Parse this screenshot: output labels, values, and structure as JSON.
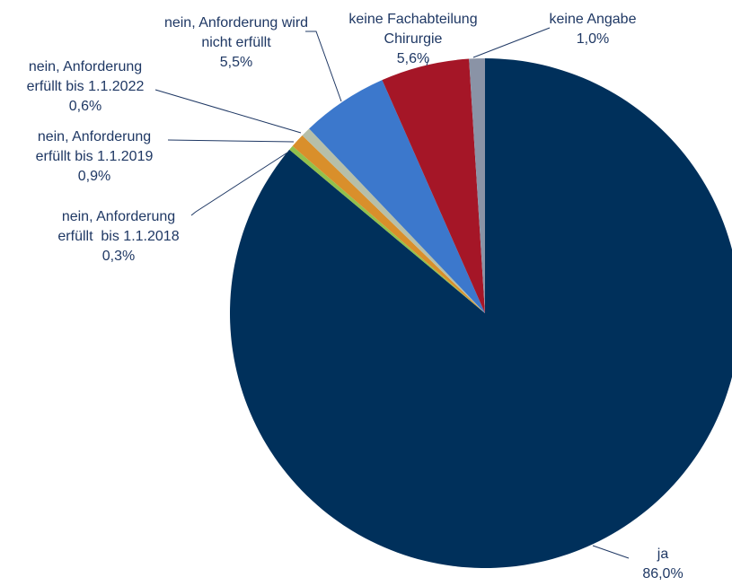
{
  "chart_data": {
    "type": "pie",
    "title": "",
    "start_angle_deg": 0,
    "direction": "clockwise",
    "slices": [
      {
        "label_lines": [
          "ja"
        ],
        "value_label": "86,0%",
        "value": 86.0,
        "color": "#00305b"
      },
      {
        "label_lines": [
          "nein, Anforderung",
          "erfüllt  bis 1.1.2018"
        ],
        "value_label": "0,3%",
        "value": 0.3,
        "color": "#92c04b"
      },
      {
        "label_lines": [
          "nein, Anforderung",
          "erfüllt bis 1.1.2019"
        ],
        "value_label": "0,9%",
        "value": 0.9,
        "color": "#d98f2b"
      },
      {
        "label_lines": [
          "nein, Anforderung",
          "erfüllt bis 1.1.2022"
        ],
        "value_label": "0,6%",
        "value": 0.6,
        "color": "#b6bfa9"
      },
      {
        "label_lines": [
          "nein, Anforderung wird",
          "nicht erfüllt"
        ],
        "value_label": "5,5%",
        "value": 5.5,
        "color": "#3c78cc"
      },
      {
        "label_lines": [
          "keine Fachabteilung",
          "Chirurgie"
        ],
        "value_label": "5,6%",
        "value": 5.6,
        "color": "#a51627"
      },
      {
        "label_lines": [
          "keine Angabe"
        ],
        "value_label": "1,0%",
        "value": 1.0,
        "color": "#8a93a6"
      }
    ]
  }
}
